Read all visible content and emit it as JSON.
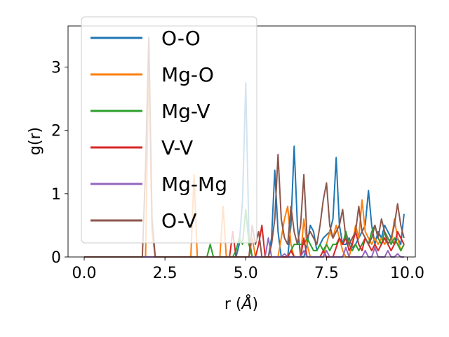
{
  "chart_data": {
    "type": "line",
    "xlabel": "r (",
    "xlabel_unit": "Å",
    "xlabel_close": ")",
    "ylabel": "g(r)",
    "xlim": [
      -0.5,
      10.25
    ],
    "ylim": [
      0,
      3.65
    ],
    "xticks": [
      0.0,
      2.5,
      5.0,
      7.5,
      10.0
    ],
    "xtick_labels": [
      "0.0",
      "2.5",
      "5.0",
      "7.5",
      "10.0"
    ],
    "yticks": [
      0,
      1,
      2,
      3
    ],
    "ytick_labels": [
      "0",
      "1",
      "2",
      "3"
    ],
    "grid": false,
    "legend_position": "top-left",
    "x": [
      0.0,
      0.1,
      0.2,
      0.3,
      0.4,
      0.5,
      0.6,
      0.7,
      0.8,
      0.9,
      1.0,
      1.1,
      1.2,
      1.3,
      1.4,
      1.5,
      1.6,
      1.7,
      1.8,
      1.9,
      2.0,
      2.1,
      2.2,
      2.3,
      2.4,
      2.5,
      2.6,
      2.7,
      2.8,
      2.9,
      3.0,
      3.1,
      3.2,
      3.3,
      3.4,
      3.5,
      3.6,
      3.7,
      3.8,
      3.9,
      4.0,
      4.1,
      4.2,
      4.3,
      4.4,
      4.5,
      4.6,
      4.7,
      4.8,
      4.9,
      5.0,
      5.1,
      5.2,
      5.3,
      5.4,
      5.5,
      5.6,
      5.7,
      5.8,
      5.9,
      6.0,
      6.1,
      6.2,
      6.3,
      6.4,
      6.5,
      6.6,
      6.7,
      6.8,
      6.9,
      7.0,
      7.1,
      7.2,
      7.3,
      7.4,
      7.5,
      7.6,
      7.7,
      7.8,
      7.9,
      8.0,
      8.1,
      8.2,
      8.3,
      8.4,
      8.5,
      8.6,
      8.7,
      8.8,
      8.9,
      9.0,
      9.1,
      9.2,
      9.3,
      9.4,
      9.5,
      9.6,
      9.7,
      9.8,
      9.9
    ],
    "series": [
      {
        "name": "O-O",
        "color": "#1f77b4",
        "values": [
          0,
          0,
          0,
          0,
          0,
          0,
          0,
          0,
          0,
          0,
          0,
          0,
          0,
          0,
          0,
          0,
          0,
          0,
          0,
          0,
          0,
          0,
          0,
          0,
          0,
          0,
          0,
          0,
          0,
          0,
          0,
          0,
          0,
          0,
          0,
          0,
          0,
          0,
          0,
          0,
          0,
          0,
          0,
          0,
          0,
          0,
          0,
          0,
          0.2,
          0.9,
          2.75,
          0.3,
          0,
          0,
          0,
          0,
          0,
          0,
          0.3,
          1.37,
          0.4,
          0,
          0,
          0,
          0.5,
          1.75,
          0.5,
          0,
          0,
          0.2,
          0.5,
          0.4,
          0.1,
          0.2,
          0.3,
          0.35,
          0.4,
          0.6,
          1.57,
          0.5,
          0.2,
          0.2,
          0.3,
          0.15,
          0.2,
          0.3,
          0.4,
          0.5,
          1.05,
          0.5,
          0.2,
          0.4,
          0.3,
          0.5,
          0.4,
          0.3,
          0.2,
          0.3,
          0.2,
          0.68
        ]
      },
      {
        "name": "Mg-O",
        "color": "#ff7f0e",
        "values": [
          0,
          0,
          0,
          0,
          0,
          0,
          0,
          0,
          0,
          0,
          0,
          0,
          0,
          0,
          0,
          0,
          0,
          0,
          0,
          0,
          3.2,
          0.4,
          0,
          0,
          0,
          0,
          0,
          0,
          0,
          0,
          0,
          0,
          0,
          0,
          1.3,
          0,
          0,
          0,
          0,
          0,
          0,
          0,
          0,
          0.8,
          0,
          0,
          0,
          0,
          0,
          0,
          0,
          0,
          0.3,
          0,
          0,
          0,
          0,
          0,
          0,
          0,
          0,
          0.3,
          0.6,
          0.8,
          0.2,
          0,
          0,
          0,
          0.6,
          0.2,
          0,
          0,
          0,
          0,
          0,
          0.2,
          0.4,
          0.3,
          0.5,
          0.3,
          0.1,
          0,
          0,
          0.2,
          0.5,
          0.3,
          0.9,
          0.4,
          0.3,
          0.2,
          0.3,
          0.2,
          0.3,
          0.2,
          0.3,
          0.2,
          0.6,
          0.3,
          0.1,
          0.2
        ]
      },
      {
        "name": "Mg-V",
        "color": "#2ca02c",
        "values": [
          0,
          0,
          0,
          0,
          0,
          0,
          0,
          0,
          0,
          0,
          0,
          0,
          0,
          0,
          0,
          0,
          0,
          0,
          0,
          0,
          0,
          0,
          0,
          0,
          0,
          0,
          0,
          0,
          0,
          0,
          0,
          0,
          0,
          0,
          0,
          0,
          0,
          0,
          0,
          0.2,
          0,
          0,
          0,
          0,
          0,
          0,
          0,
          0.1,
          0.3,
          0.2,
          0.75,
          0.2,
          0,
          0,
          0,
          0,
          0,
          0,
          0,
          0,
          0,
          0,
          0,
          0,
          0.1,
          0.2,
          0.2,
          0.2,
          0.2,
          0.3,
          0.2,
          0.1,
          0.1,
          0.2,
          0.1,
          0.2,
          0.1,
          0.2,
          0.2,
          0.3,
          0.2,
          0.4,
          0.2,
          0.1,
          0.2,
          0.1,
          0.2,
          0.3,
          0.2,
          0.4,
          0.5,
          0.3,
          0.2,
          0.4,
          0.3,
          0.2,
          0.3,
          0.2,
          0.1,
          0.2
        ]
      },
      {
        "name": "V-V",
        "color": "#d62728",
        "values": [
          0,
          0,
          0,
          0,
          0,
          0,
          0,
          0,
          0,
          0,
          0,
          0,
          0,
          0,
          0,
          0,
          0,
          0,
          0,
          0,
          0,
          0,
          0,
          0,
          0,
          0,
          0,
          0,
          0,
          0,
          0,
          0,
          0,
          0,
          0,
          0,
          0,
          0,
          0,
          0,
          0,
          0,
          0,
          0,
          0,
          0,
          0.4,
          0,
          0,
          0,
          0,
          0,
          0,
          0,
          0.2,
          0.5,
          0,
          0,
          0,
          0,
          0,
          0,
          0,
          0,
          0.1,
          0,
          0,
          0,
          0.3,
          0,
          0,
          0,
          0,
          0,
          0.1,
          0,
          0,
          0,
          0.15,
          0.3,
          0.2,
          0.3,
          0.1,
          0.2,
          0.4,
          0.2,
          0.1,
          0.3,
          0.2,
          0.1,
          0.2,
          0.1,
          0.2,
          0.3,
          0.2,
          0.1,
          0.2,
          0.4,
          0.3,
          0.2
        ]
      },
      {
        "name": "Mg-Mg",
        "color": "#9467bd",
        "values": [
          0,
          0,
          0,
          0,
          0,
          0,
          0,
          0,
          0,
          0,
          0,
          0,
          0,
          0,
          0,
          0,
          0,
          0,
          0,
          0,
          0,
          0,
          0,
          0,
          0,
          0,
          0,
          0,
          0,
          0,
          0,
          0,
          0,
          0,
          0,
          0,
          0,
          0,
          0,
          0,
          0,
          0,
          0,
          0,
          0,
          0,
          0,
          0,
          0,
          0,
          0,
          0,
          0,
          0,
          0,
          0,
          0,
          0.3,
          0,
          0,
          0,
          0,
          0.05,
          0,
          0,
          0,
          0,
          0,
          0.1,
          0,
          0,
          0,
          0,
          0,
          0,
          0.1,
          0,
          0,
          0,
          0,
          0,
          0.15,
          0,
          0,
          0,
          0,
          0,
          0.1,
          0,
          0,
          0.15,
          0,
          0,
          0,
          0.1,
          0,
          0,
          0.05,
          0,
          0
        ]
      },
      {
        "name": "O-V",
        "color": "#8c564b",
        "values": [
          0,
          0,
          0,
          0,
          0,
          0,
          0,
          0,
          0,
          0,
          0,
          0,
          0,
          0,
          0,
          0,
          0,
          0,
          0,
          1.42,
          3.47,
          0.6,
          0,
          0,
          0,
          0,
          0,
          0,
          0,
          0,
          0,
          0,
          0,
          0,
          0,
          0,
          0,
          0,
          0,
          0,
          0,
          0,
          0,
          0,
          0,
          0,
          0,
          0,
          0,
          0,
          0,
          0,
          0.5,
          0.2,
          0.4,
          0,
          0,
          0,
          0.2,
          0.6,
          1.62,
          0.6,
          0.3,
          0.2,
          0.8,
          0.4,
          0.2,
          0.5,
          1.3,
          0.3,
          0.4,
          0.3,
          0.2,
          0.5,
          0.9,
          1.17,
          0.5,
          0.3,
          0.4,
          0.5,
          0.75,
          0.3,
          0.2,
          0.3,
          0.4,
          0.8,
          0.4,
          0.3,
          0.2,
          0.3,
          0.5,
          0.3,
          0.6,
          0.4,
          0.2,
          0.3,
          0.5,
          0.84,
          0.5,
          0.3
        ]
      }
    ]
  }
}
